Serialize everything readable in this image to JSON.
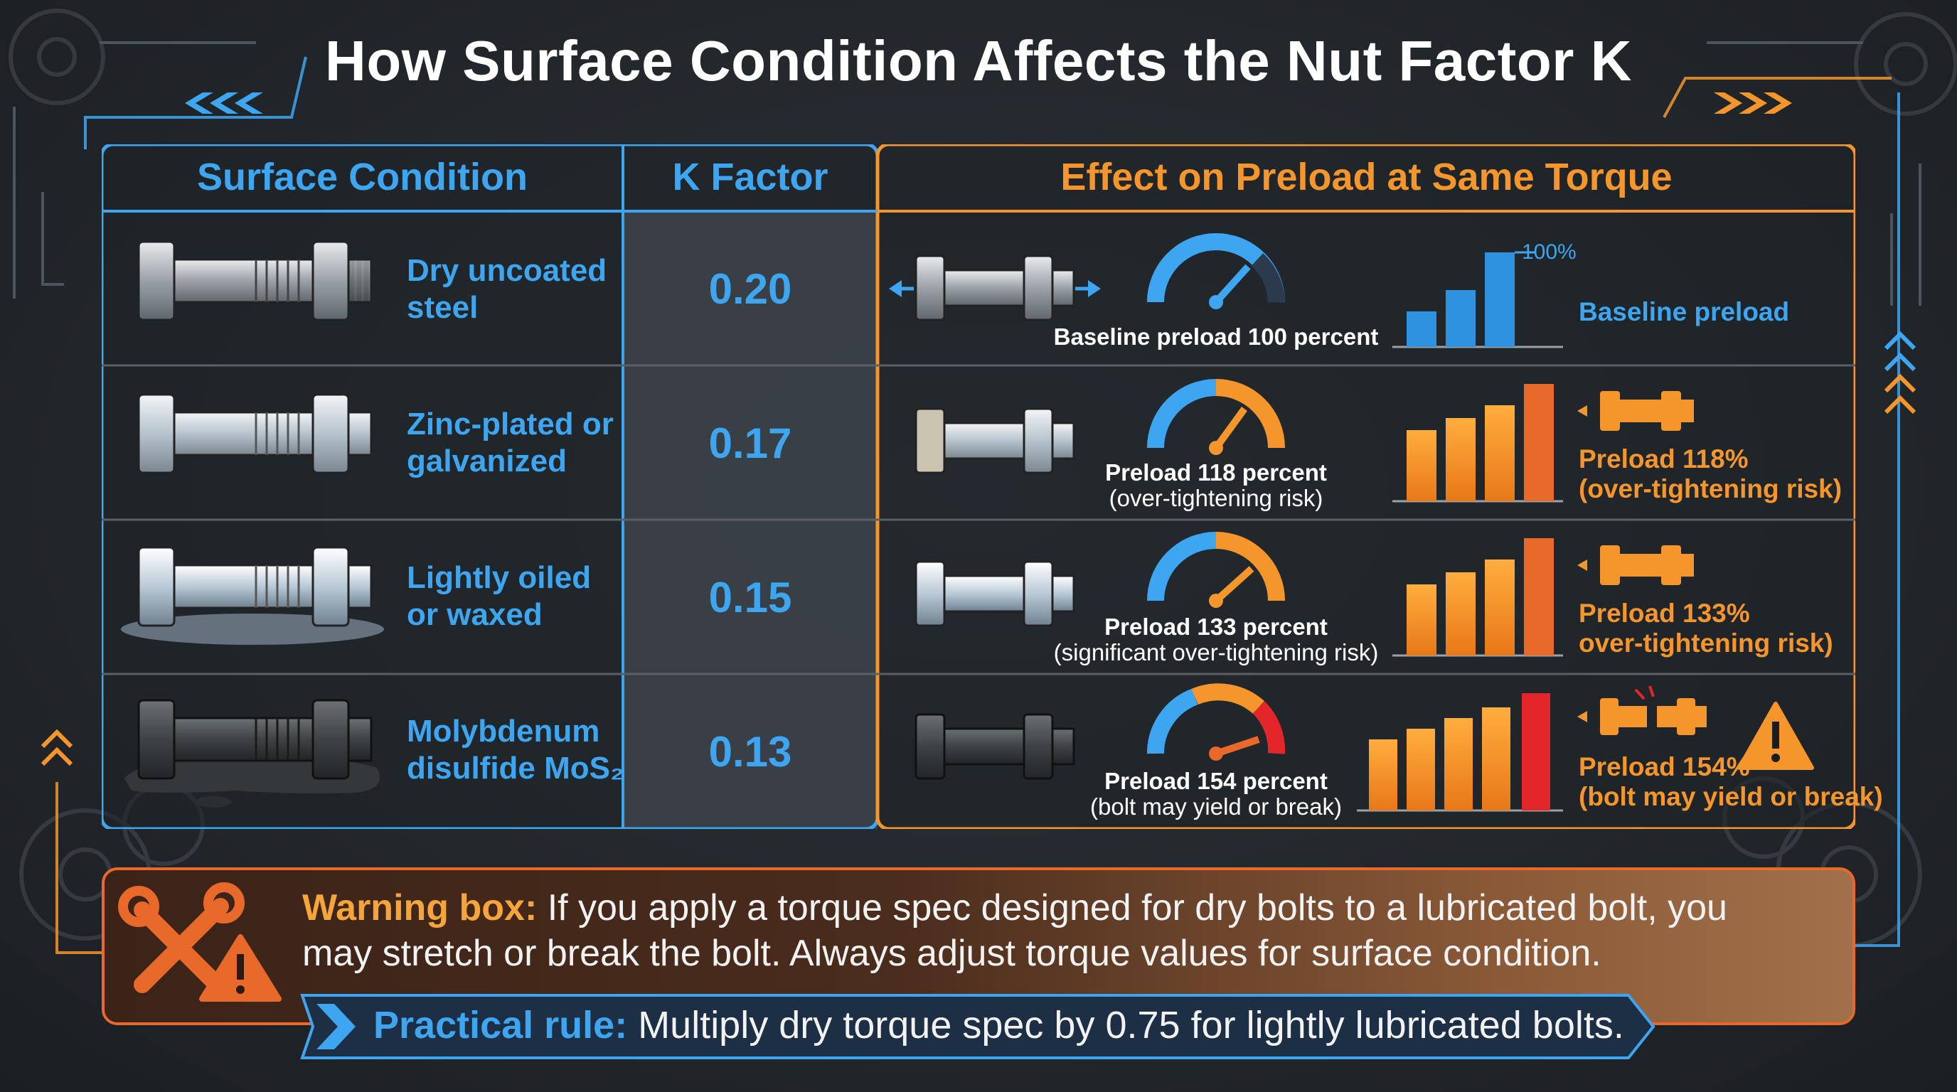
{
  "title": "How Surface Condition Affects the Nut Factor K",
  "headers": {
    "condition": "Surface Condition",
    "k_factor": "K Factor",
    "effect": "Effect on Preload at Same Torque"
  },
  "rows": [
    {
      "condition_line1": "Dry uncoated",
      "condition_line2": "steel",
      "k": "0.20",
      "caption_line1": "Baseline preload 100 percent",
      "caption_line2": "",
      "note_line1": "Baseline preload",
      "note_line2": "",
      "bar_label": "100%",
      "gauge_level": 0.65,
      "bars": [
        0.45,
        0.72,
        1.0
      ]
    },
    {
      "condition_line1": "Zinc-plated or",
      "condition_line2": "galvanized",
      "k": "0.17",
      "caption_line1": "Preload 118 percent",
      "caption_line2": "(over-tightening risk)",
      "note_line1": "Preload 118%",
      "note_line2": "(over-tightening risk)",
      "bar_label": "",
      "gauge_level": 0.72,
      "bars": [
        0.62,
        0.72,
        0.82,
        1.0
      ]
    },
    {
      "condition_line1": "Lightly oiled",
      "condition_line2": "or waxed",
      "k": "0.15",
      "caption_line1": "Preload 133 percent",
      "caption_line2": "(significant over-tightening risk)",
      "note_line1": "Preload 133%",
      "note_line2": "over-tightening risk)",
      "bar_label": "",
      "gauge_level": 0.8,
      "bars": [
        0.62,
        0.72,
        0.82,
        1.0
      ]
    },
    {
      "condition_line1": "Molybdenum",
      "condition_line2": "disulfide MoS₂",
      "k": "0.13",
      "caption_line1": "Preload 154 percent",
      "caption_line2": "(bolt may yield or break)",
      "note_line1": "Preload 154%",
      "note_line2": "(bolt may yield or break)",
      "bar_label": "",
      "gauge_level": 0.92,
      "bars": [
        0.58,
        0.68,
        0.78,
        0.88,
        1.0
      ]
    }
  ],
  "warning": {
    "label": "Warning box:",
    "line1": " If you apply a torque spec designed for dry bolts to a lubricated bolt, you",
    "line2": "may stretch or break the bolt. Always adjust torque values for surface condition."
  },
  "rule": {
    "label": "Practical rule:",
    "text": " Multiply dry torque spec by 0.75 for lightly lubricated bolts."
  },
  "colors": {
    "accent_blue": "#3ea6f0",
    "accent_orange": "#f5962c",
    "warning_orange": "#e8692a",
    "danger_red": "#e3262a",
    "background": "#23282d"
  },
  "icons": [
    "gear-icon",
    "chevron-left-icon",
    "chevron-right-icon",
    "chevron-up-icon",
    "bolt-icon",
    "gauge-icon",
    "wrench-screwdriver-icon",
    "warning-triangle-icon",
    "arrow-right-icon"
  ]
}
